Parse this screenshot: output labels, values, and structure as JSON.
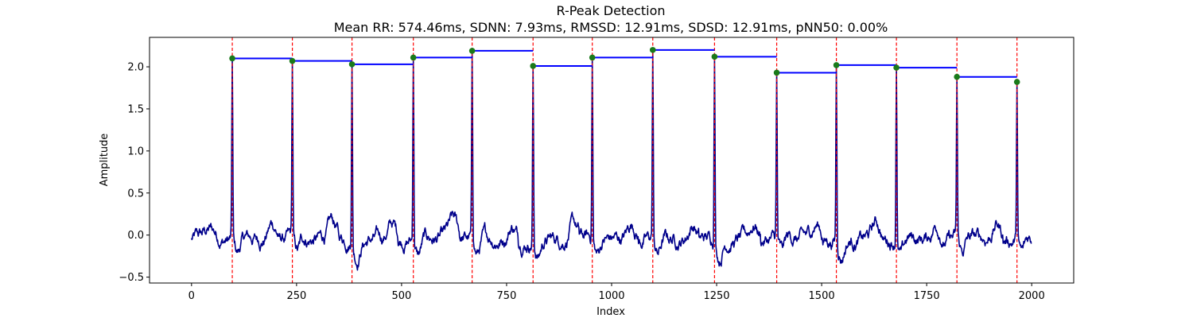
{
  "chart_data": {
    "type": "line",
    "title": "R-Peak Detection",
    "subtitle": "Mean RR: 574.46ms, SDNN: 7.93ms, RMSSD: 12.91ms, SDSD: 12.91ms, pNN50: 0.00%",
    "xlabel": "Index",
    "ylabel": "Amplitude",
    "xlim": [
      -100,
      2100
    ],
    "ylim": [
      -0.57,
      2.35
    ],
    "xticks": [
      0,
      250,
      500,
      750,
      1000,
      1250,
      1500,
      1750,
      2000
    ],
    "yticks": [
      -0.5,
      0.0,
      0.5,
      1.0,
      1.5,
      2.0
    ],
    "ytick_labels": [
      "−0.5",
      "0.0",
      "0.5",
      "1.0",
      "1.5",
      "2.0"
    ],
    "grid": false,
    "signal_length": 2000,
    "peaks": [
      {
        "x": 97,
        "y": 2.1
      },
      {
        "x": 240,
        "y": 2.07
      },
      {
        "x": 382,
        "y": 2.03
      },
      {
        "x": 528,
        "y": 2.11
      },
      {
        "x": 668,
        "y": 2.19
      },
      {
        "x": 813,
        "y": 2.01
      },
      {
        "x": 954,
        "y": 2.11
      },
      {
        "x": 1098,
        "y": 2.2
      },
      {
        "x": 1245,
        "y": 2.12
      },
      {
        "x": 1393,
        "y": 1.93
      },
      {
        "x": 1535,
        "y": 2.02
      },
      {
        "x": 1678,
        "y": 1.99
      },
      {
        "x": 1822,
        "y": 1.88
      },
      {
        "x": 1965,
        "y": 1.82
      }
    ],
    "colors": {
      "signal": "#00008b",
      "peak_marker": "#1a7a1a",
      "peak_line": "#ff0000",
      "rr_interval": "#0000ff"
    }
  }
}
